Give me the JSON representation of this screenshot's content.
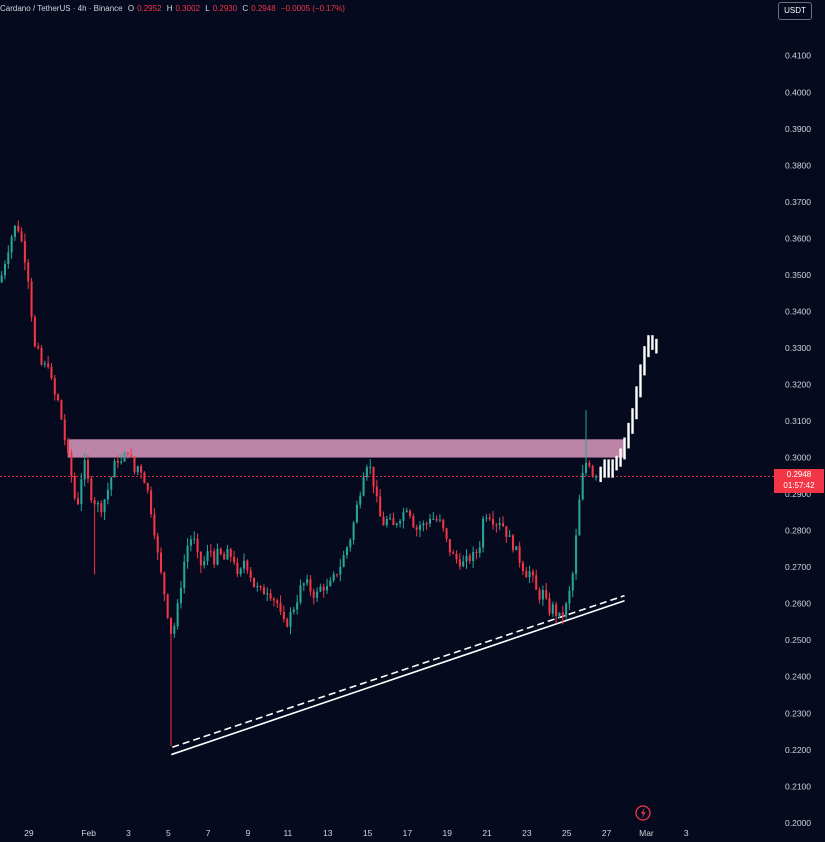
{
  "header": {
    "symbol": "Cardano / TetherUS · 4h · Binance",
    "open_label": "O",
    "open": "0.2952",
    "high_label": "H",
    "high": "0.3002",
    "low_label": "L",
    "low": "0.2930",
    "close_label": "C",
    "close": "0.2948",
    "change": "−0.0005 (−0.17%)"
  },
  "unit_button": "USDT",
  "current_price": {
    "value": "0.2948",
    "countdown": "01:57:42"
  },
  "colors": {
    "background": "#050a1e",
    "bullish": "#26a69a",
    "bearish": "#f23645",
    "zone": "#e5a0c4",
    "projection": "#ffffff",
    "axis_text": "#d1d4dc"
  },
  "icons": {
    "replay": "lightning-bolt-icon"
  },
  "chart_data": {
    "type": "candlestick",
    "title": "",
    "xlabel": "",
    "ylabel": "",
    "ylim": [
      0.1975,
      0.4165
    ],
    "yticks": [
      "0.4100",
      "0.4000",
      "0.3900",
      "0.3800",
      "0.3700",
      "0.3600",
      "0.3500",
      "0.3400",
      "0.3300",
      "0.3200",
      "0.3100",
      "0.3000",
      "0.2900",
      "0.2800",
      "0.2700",
      "0.2600",
      "0.2500",
      "0.2400",
      "0.2300",
      "0.2200",
      "0.2100",
      "0.2000"
    ],
    "xticks": [
      {
        "label": "29",
        "day": -3
      },
      {
        "label": "Feb",
        "day": 0
      },
      {
        "label": "3",
        "day": 2
      },
      {
        "label": "5",
        "day": 4
      },
      {
        "label": "7",
        "day": 6
      },
      {
        "label": "9",
        "day": 8
      },
      {
        "label": "11",
        "day": 10
      },
      {
        "label": "13",
        "day": 12
      },
      {
        "label": "15",
        "day": 14
      },
      {
        "label": "17",
        "day": 16
      },
      {
        "label": "19",
        "day": 18
      },
      {
        "label": "21",
        "day": 20
      },
      {
        "label": "23",
        "day": 22
      },
      {
        "label": "25",
        "day": 24
      },
      {
        "label": "27",
        "day": 26
      },
      {
        "label": "Mar",
        "day": 28
      },
      {
        "label": "3",
        "day": 30
      }
    ],
    "x_range_days": [
      -4.45,
      33.7
    ],
    "resistance_zone": {
      "start_day": -1.05,
      "end_day": 26.85,
      "low": 0.3,
      "high": 0.305
    },
    "trendline_solid": [
      {
        "day": 4.15,
        "price": 0.2187
      },
      {
        "day": 26.9,
        "price": 0.2608
      }
    ],
    "trendline_dashed": [
      {
        "day": 4.2,
        "price": 0.2207
      },
      {
        "day": 26.9,
        "price": 0.2622
      }
    ],
    "current_price_line": 0.2948,
    "price_path": [
      [
        -4.45,
        0.348
      ],
      [
        -4.1,
        0.356
      ],
      [
        -3.8,
        0.362
      ],
      [
        -3.6,
        0.364
      ],
      [
        -3.4,
        0.36
      ],
      [
        -3.1,
        0.352
      ],
      [
        -2.9,
        0.344
      ],
      [
        -2.8,
        0.33
      ],
      [
        -2.6,
        0.33
      ],
      [
        -2.3,
        0.324
      ],
      [
        -2.1,
        0.326
      ],
      [
        -2.0,
        0.326
      ],
      [
        -1.8,
        0.318
      ],
      [
        -1.5,
        0.315
      ],
      [
        -1.2,
        0.305
      ],
      [
        -0.8,
        0.293
      ],
      [
        -0.6,
        0.285
      ],
      [
        -0.4,
        0.294
      ],
      [
        -0.2,
        0.298
      ],
      [
        0.1,
        0.29
      ],
      [
        0.3,
        0.288
      ],
      [
        0.6,
        0.286
      ],
      [
        0.9,
        0.29
      ],
      [
        1.1,
        0.294
      ],
      [
        1.4,
        0.3
      ],
      [
        1.7,
        0.298
      ],
      [
        1.9,
        0.303
      ],
      [
        2.1,
        0.3
      ],
      [
        2.3,
        0.296
      ],
      [
        2.5,
        0.298
      ],
      [
        2.7,
        0.296
      ],
      [
        3.0,
        0.29
      ],
      [
        3.3,
        0.28
      ],
      [
        3.5,
        0.272
      ],
      [
        3.7,
        0.266
      ],
      [
        3.9,
        0.26
      ],
      [
        4.1,
        0.252
      ],
      [
        4.3,
        0.254
      ],
      [
        4.5,
        0.26
      ],
      [
        4.7,
        0.268
      ],
      [
        4.9,
        0.275
      ],
      [
        5.1,
        0.278
      ],
      [
        5.3,
        0.277
      ],
      [
        5.5,
        0.272
      ],
      [
        5.7,
        0.27
      ],
      [
        5.9,
        0.273
      ],
      [
        6.1,
        0.275
      ],
      [
        6.3,
        0.272
      ],
      [
        6.5,
        0.274
      ],
      [
        6.8,
        0.272
      ],
      [
        7.0,
        0.274
      ],
      [
        7.3,
        0.272
      ],
      [
        7.5,
        0.266
      ],
      [
        7.8,
        0.272
      ],
      [
        8.0,
        0.27
      ],
      [
        8.3,
        0.265
      ],
      [
        8.5,
        0.264
      ],
      [
        8.7,
        0.263
      ],
      [
        9.0,
        0.264
      ],
      [
        9.2,
        0.262
      ],
      [
        9.5,
        0.26
      ],
      [
        9.7,
        0.255
      ],
      [
        9.9,
        0.254
      ],
      [
        10.2,
        0.258
      ],
      [
        10.4,
        0.26
      ],
      [
        10.6,
        0.264
      ],
      [
        10.9,
        0.266
      ],
      [
        11.1,
        0.264
      ],
      [
        11.4,
        0.262
      ],
      [
        11.7,
        0.265
      ],
      [
        12.0,
        0.264
      ],
      [
        12.3,
        0.267
      ],
      [
        12.6,
        0.27
      ],
      [
        12.8,
        0.273
      ],
      [
        13.0,
        0.276
      ],
      [
        13.2,
        0.279
      ],
      [
        13.4,
        0.285
      ],
      [
        13.6,
        0.29
      ],
      [
        13.8,
        0.296
      ],
      [
        14.0,
        0.299
      ],
      [
        14.2,
        0.296
      ],
      [
        14.4,
        0.29
      ],
      [
        14.6,
        0.284
      ],
      [
        14.8,
        0.282
      ],
      [
        15.0,
        0.283
      ],
      [
        15.3,
        0.281
      ],
      [
        15.5,
        0.283
      ],
      [
        15.8,
        0.285
      ],
      [
        16.0,
        0.287
      ],
      [
        16.2,
        0.284
      ],
      [
        16.4,
        0.28
      ],
      [
        16.7,
        0.282
      ],
      [
        16.9,
        0.281
      ],
      [
        17.1,
        0.284
      ],
      [
        17.4,
        0.283
      ],
      [
        17.7,
        0.282
      ],
      [
        17.9,
        0.278
      ],
      [
        18.1,
        0.275
      ],
      [
        18.3,
        0.273
      ],
      [
        18.5,
        0.272
      ],
      [
        18.8,
        0.271
      ],
      [
        19.0,
        0.272
      ],
      [
        19.3,
        0.273
      ],
      [
        19.6,
        0.275
      ],
      [
        19.8,
        0.283
      ],
      [
        20.0,
        0.285
      ],
      [
        20.2,
        0.284
      ],
      [
        20.4,
        0.282
      ],
      [
        20.7,
        0.283
      ],
      [
        20.9,
        0.28
      ],
      [
        21.1,
        0.278
      ],
      [
        21.3,
        0.276
      ],
      [
        21.5,
        0.274
      ],
      [
        21.7,
        0.271
      ],
      [
        22.0,
        0.268
      ],
      [
        22.2,
        0.269
      ],
      [
        22.4,
        0.264
      ],
      [
        22.6,
        0.262
      ],
      [
        22.8,
        0.263
      ],
      [
        23.1,
        0.258
      ],
      [
        23.3,
        0.259
      ],
      [
        23.5,
        0.257
      ],
      [
        23.7,
        0.256
      ],
      [
        23.9,
        0.258
      ],
      [
        24.1,
        0.262
      ],
      [
        24.3,
        0.268
      ],
      [
        24.5,
        0.28
      ],
      [
        24.7,
        0.292
      ],
      [
        24.9,
        0.298
      ],
      [
        25.1,
        0.3
      ],
      [
        25.2,
        0.296
      ],
      [
        25.4,
        0.295
      ],
      [
        25.6,
        0.2948
      ]
    ],
    "projection": [
      [
        25.7,
        0.296
      ],
      [
        25.9,
        0.298
      ],
      [
        26.1,
        0.296
      ],
      [
        26.3,
        0.298
      ],
      [
        26.5,
        0.299
      ],
      [
        26.7,
        0.301
      ],
      [
        26.9,
        0.304
      ],
      [
        27.1,
        0.308
      ],
      [
        27.3,
        0.312
      ],
      [
        27.5,
        0.318
      ],
      [
        27.7,
        0.324
      ],
      [
        27.9,
        0.329
      ],
      [
        28.1,
        0.332
      ],
      [
        28.3,
        0.331
      ],
      [
        28.5,
        0.33
      ]
    ]
  }
}
